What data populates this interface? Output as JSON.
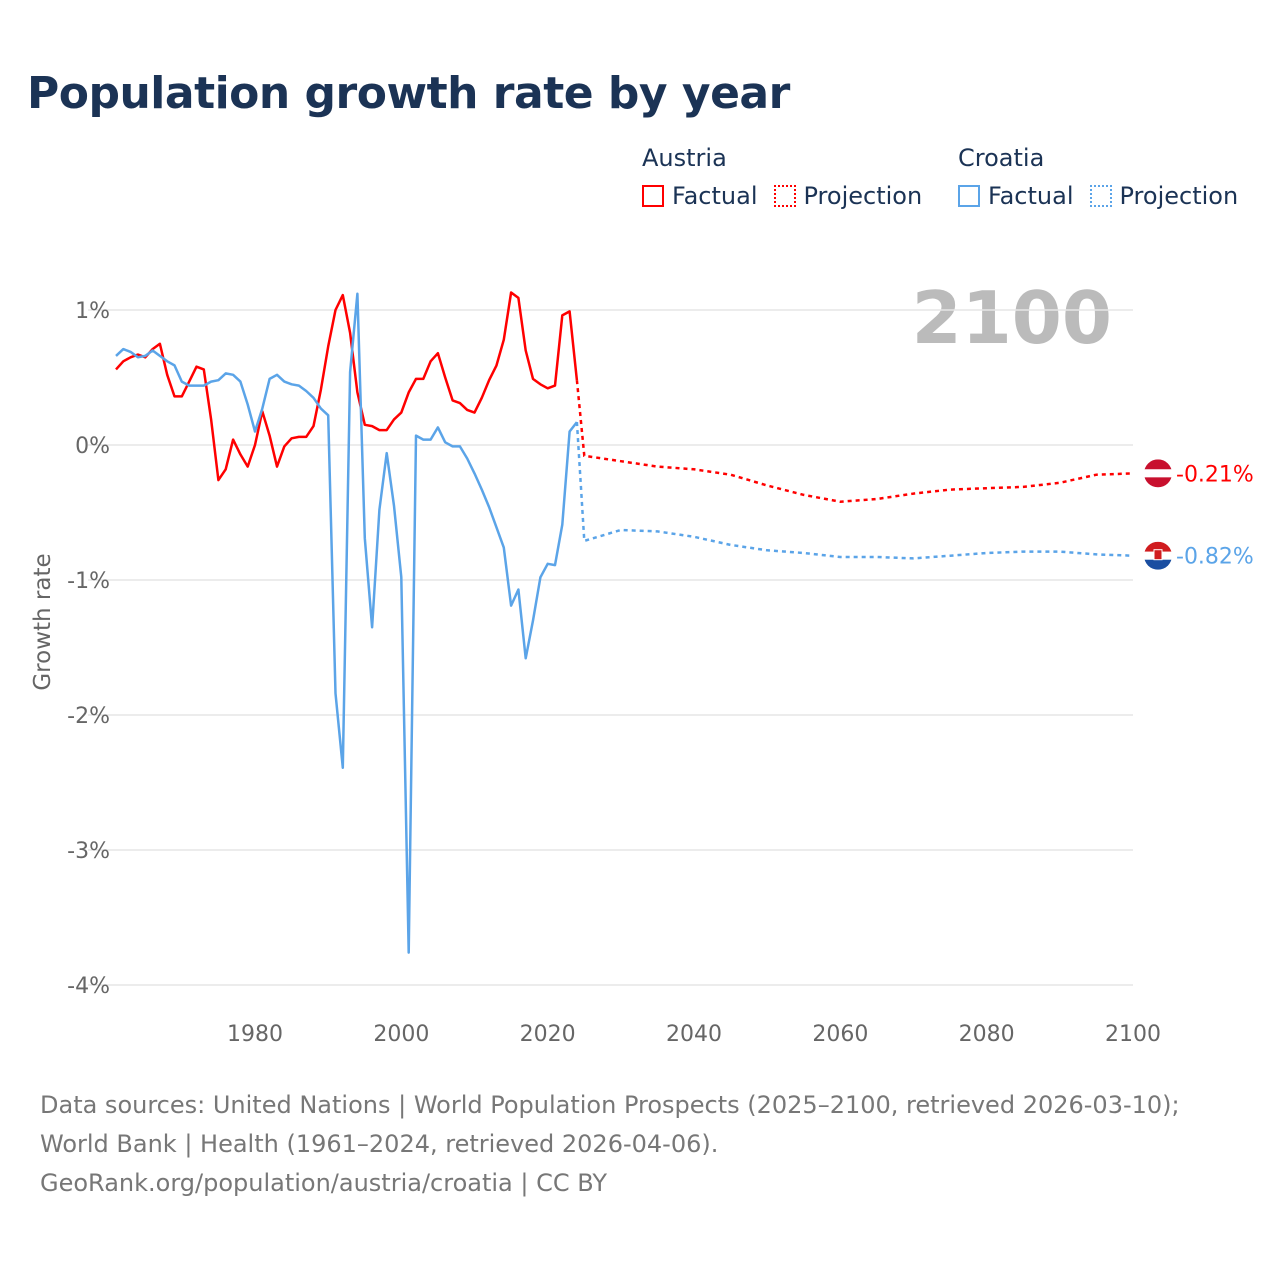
{
  "chart_data": {
    "type": "line",
    "title": "Population growth rate by year",
    "ylabel": "Growth rate",
    "xlabel": "",
    "xlim": [
      1961,
      2100
    ],
    "ylim": [
      -4.2,
      1.5
    ],
    "x_ticks": [
      1980,
      2000,
      2020,
      2040,
      2060,
      2080,
      2100
    ],
    "y_ticks": [
      1,
      0,
      -1,
      -2,
      -3,
      -4
    ],
    "y_tick_labels": [
      "1%",
      "0%",
      "-1%",
      "-2%",
      "-3%",
      "-4%"
    ],
    "grid": true,
    "year_display": "2100",
    "legend": {
      "placement": "top-right",
      "groups": [
        {
          "country": "Austria",
          "factual": "Factual",
          "projection": "Projection"
        },
        {
          "country": "Croatia",
          "factual": "Factual",
          "projection": "Projection"
        }
      ]
    },
    "series": [
      {
        "name": "Austria",
        "color": "#ff0000",
        "end_label": "-0.21%",
        "factual": {
          "x_start": 1961,
          "values": [
            0.56,
            0.62,
            0.65,
            0.67,
            0.65,
            0.71,
            0.75,
            0.52,
            0.36,
            0.36,
            0.47,
            0.58,
            0.56,
            0.19,
            -0.26,
            -0.18,
            0.04,
            -0.07,
            -0.16,
            0.0,
            0.25,
            0.07,
            -0.16,
            -0.01,
            0.05,
            0.06,
            0.06,
            0.14,
            0.41,
            0.73,
            1.0,
            1.11,
            0.83,
            0.39,
            0.15,
            0.14,
            0.11,
            0.11,
            0.19,
            0.24,
            0.39,
            0.49,
            0.49,
            0.62,
            0.68,
            0.5,
            0.33,
            0.31,
            0.26,
            0.24,
            0.35,
            0.48,
            0.59,
            0.78,
            1.13,
            1.09,
            0.7,
            0.49,
            0.45,
            0.42,
            0.44,
            0.96,
            0.99,
            0.48
          ]
        },
        "projection": {
          "x": [
            2024,
            2025,
            2030,
            2035,
            2040,
            2045,
            2050,
            2055,
            2060,
            2065,
            2070,
            2075,
            2080,
            2085,
            2090,
            2095,
            2100
          ],
          "values": [
            0.48,
            -0.08,
            -0.12,
            -0.16,
            -0.18,
            -0.22,
            -0.3,
            -0.37,
            -0.42,
            -0.4,
            -0.36,
            -0.33,
            -0.32,
            -0.31,
            -0.28,
            -0.22,
            -0.21
          ]
        }
      },
      {
        "name": "Croatia",
        "color": "#5ba4e8",
        "end_label": "-0.82%",
        "factual": {
          "x_start": 1961,
          "values": [
            0.66,
            0.71,
            0.69,
            0.65,
            0.66,
            0.7,
            0.66,
            0.62,
            0.59,
            0.47,
            0.44,
            0.44,
            0.44,
            0.47,
            0.48,
            0.53,
            0.52,
            0.47,
            0.3,
            0.1,
            0.27,
            0.49,
            0.52,
            0.47,
            0.45,
            0.44,
            0.4,
            0.35,
            0.27,
            0.22,
            -1.84,
            -2.39,
            0.54,
            1.12,
            -0.69,
            -1.35,
            -0.48,
            -0.06,
            -0.45,
            -0.98,
            -3.76,
            0.07,
            0.04,
            0.04,
            0.13,
            0.02,
            -0.01,
            -0.01,
            -0.1,
            -0.21,
            -0.33,
            -0.46,
            -0.61,
            -0.76,
            -1.19,
            -1.07,
            -1.58,
            -1.3,
            -0.98,
            -0.88,
            -0.89,
            -0.59,
            0.1,
            0.17
          ]
        },
        "projection": {
          "x": [
            2024,
            2025,
            2030,
            2035,
            2040,
            2045,
            2050,
            2055,
            2060,
            2065,
            2070,
            2075,
            2080,
            2085,
            2090,
            2095,
            2100
          ],
          "values": [
            0.17,
            -0.71,
            -0.63,
            -0.64,
            -0.68,
            -0.74,
            -0.78,
            -0.8,
            -0.83,
            -0.83,
            -0.84,
            -0.82,
            -0.8,
            -0.79,
            -0.79,
            -0.81,
            -0.82
          ]
        }
      }
    ]
  },
  "footer": {
    "sources": "Data sources: United Nations | World Population Prospects (2025–2100, retrieved 2026-03-10); World Bank | Health (1961–2024, retrieved 2026-04-06).",
    "credit": "GeoRank.org/population/austria/croatia | CC BY"
  }
}
